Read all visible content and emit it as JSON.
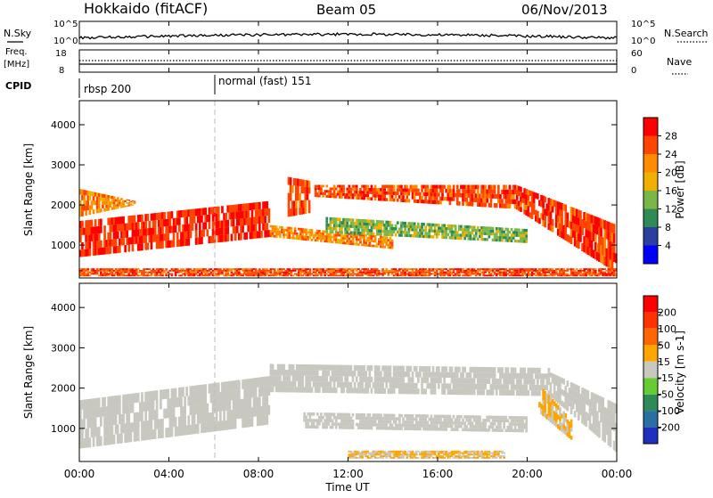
{
  "header": {
    "station": "Hokkaido (fitACF)",
    "beam": "Beam 05",
    "date": "06/Nov/2013"
  },
  "summary_panels": {
    "nsky_label": "N.Sky",
    "nsky_ticks": [
      "10^5",
      "10^0"
    ],
    "nsearch_label": "N.Search",
    "nsearch_ticks": [
      "10^5",
      "10^0"
    ],
    "freq_label_line1": "Freq.",
    "freq_label_line2": "[MHz]",
    "freq_ticks": [
      "18",
      "8"
    ],
    "nave_label": "Nave",
    "nave_ticks": [
      "60",
      "0"
    ],
    "cpid_label": "CPID",
    "cpid_segments": [
      {
        "label": "rbsp 200",
        "start_hour": 0
      },
      {
        "label": "normal (fast) 151",
        "start_hour": 6
      }
    ]
  },
  "axes": {
    "xlabel": "Time UT",
    "x_ticks": [
      "00:00",
      "04:00",
      "08:00",
      "12:00",
      "16:00",
      "20:00",
      "00:00"
    ],
    "ylabel": "Slant Range [km]",
    "y_ticks": [
      "1000",
      "2000",
      "3000",
      "4000"
    ]
  },
  "colorbars": {
    "power": {
      "label": "Power [dB]",
      "ticks": [
        "4",
        "8",
        "12",
        "16",
        "20",
        "24",
        "28"
      ],
      "colors": [
        "#0000ff",
        "#2a3fa0",
        "#2e8b57",
        "#7ab648",
        "#f0b000",
        "#ff8c00",
        "#ff4500",
        "#ff0000"
      ]
    },
    "velocity": {
      "label": "Velocity [m s-1]",
      "ticks": [
        "200",
        "100",
        "50",
        "15",
        "-15",
        "-50",
        "-100",
        "-200"
      ],
      "colors": [
        "#1f2fbf",
        "#2a6fa0",
        "#2e8b57",
        "#66cc33",
        "#c8c8c0",
        "#ffa500",
        "#ff6600",
        "#ff3300",
        "#ff0000"
      ]
    }
  },
  "chart_data": [
    {
      "type": "heatmap",
      "name": "Power",
      "x_unit": "hours UT",
      "xlim": [
        0,
        24
      ],
      "ylim": [
        180,
        4600
      ],
      "colorbar_range": [
        0,
        32
      ],
      "bands": [
        {
          "t0": 0,
          "t1": 8.5,
          "r_lo_start": 700,
          "r_lo_end": 1200,
          "r_hi_start": 1600,
          "r_hi_end": 2100,
          "value": 28
        },
        {
          "t0": 0,
          "t1": 2.5,
          "r_lo_start": 1700,
          "r_lo_end": 2000,
          "r_hi_start": 2400,
          "r_hi_end": 2100,
          "value": 22
        },
        {
          "t0": 9.3,
          "t1": 10.3,
          "r_lo_start": 1700,
          "r_lo_end": 1800,
          "r_hi_start": 2700,
          "r_hi_end": 2600,
          "value": 26
        },
        {
          "t0": 10.5,
          "t1": 19.5,
          "r_lo_start": 2200,
          "r_lo_end": 1900,
          "r_hi_start": 2500,
          "r_hi_end": 2500,
          "value": 26
        },
        {
          "t0": 19.5,
          "t1": 24,
          "r_lo_start": 1900,
          "r_lo_end": 300,
          "r_hi_start": 2500,
          "r_hi_end": 1500,
          "value": 27
        },
        {
          "t0": 8.5,
          "t1": 14,
          "r_lo_start": 1200,
          "r_lo_end": 900,
          "r_hi_start": 1500,
          "r_hi_end": 1200,
          "value": 22
        },
        {
          "t0": 11,
          "t1": 20,
          "r_lo_start": 1300,
          "r_lo_end": 1050,
          "r_hi_start": 1700,
          "r_hi_end": 1400,
          "value": 14
        },
        {
          "t0": 0,
          "t1": 24,
          "r_lo_start": 220,
          "r_lo_end": 220,
          "r_hi_start": 420,
          "r_hi_end": 420,
          "value": 26
        }
      ]
    },
    {
      "type": "heatmap",
      "name": "Velocity",
      "x_unit": "hours UT",
      "xlim": [
        0,
        24
      ],
      "ylim": [
        180,
        4600
      ],
      "colorbar_range": [
        -250,
        250
      ],
      "bands": [
        {
          "t0": 0,
          "t1": 8.5,
          "r_lo_start": 500,
          "r_lo_end": 1100,
          "r_hi_start": 1700,
          "r_hi_end": 2300,
          "value": 0
        },
        {
          "t0": 8.5,
          "t1": 21,
          "r_lo_start": 1900,
          "r_lo_end": 1800,
          "r_hi_start": 2600,
          "r_hi_end": 2500,
          "value": 0
        },
        {
          "t0": 10,
          "t1": 20,
          "r_lo_start": 1000,
          "r_lo_end": 900,
          "r_hi_start": 1400,
          "r_hi_end": 1300,
          "value": 0
        },
        {
          "t0": 21,
          "t1": 24,
          "r_lo_start": 1800,
          "r_lo_end": 400,
          "r_hi_start": 2400,
          "r_hi_end": 1600,
          "value": 0
        },
        {
          "t0": 20.5,
          "t1": 22,
          "r_lo_start": 1400,
          "r_lo_end": 700,
          "r_hi_start": 2100,
          "r_hi_end": 1200,
          "value": 30
        },
        {
          "t0": 12,
          "t1": 19,
          "r_lo_start": 250,
          "r_lo_end": 250,
          "r_hi_start": 450,
          "r_hi_end": 450,
          "value": 30
        }
      ]
    }
  ]
}
